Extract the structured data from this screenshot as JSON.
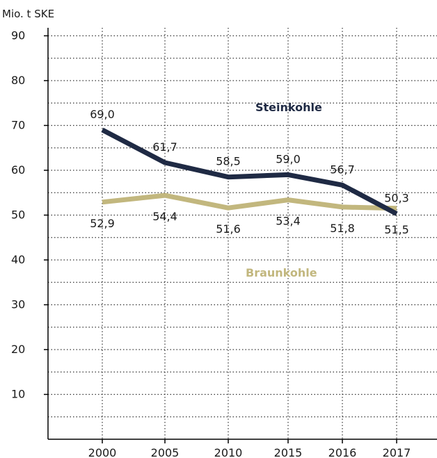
{
  "chart_data": {
    "type": "line",
    "title": "",
    "ylabel": "Mio. t SKE",
    "xlabel": "",
    "categories": [
      "2000",
      "2005",
      "2010",
      "2015",
      "2016",
      "2017"
    ],
    "ylim": [
      0,
      95
    ],
    "yticks": [
      10,
      20,
      30,
      40,
      50,
      60,
      70,
      80,
      90
    ],
    "grid": true,
    "series": [
      {
        "name": "Steinkohle",
        "color": "#1f2a44",
        "values": [
          69.0,
          61.7,
          58.5,
          59.0,
          56.7,
          50.3
        ],
        "labels": [
          "69,0",
          "61,7",
          "58,5",
          "59,0",
          "56,7",
          "50,3"
        ]
      },
      {
        "name": "Braunkohle",
        "color": "#c2b77e",
        "values": [
          52.9,
          54.4,
          51.6,
          53.4,
          51.8,
          51.5
        ],
        "labels": [
          "52,9",
          "54,4",
          "51,6",
          "53,4",
          "51,8",
          "51,5"
        ]
      }
    ]
  }
}
